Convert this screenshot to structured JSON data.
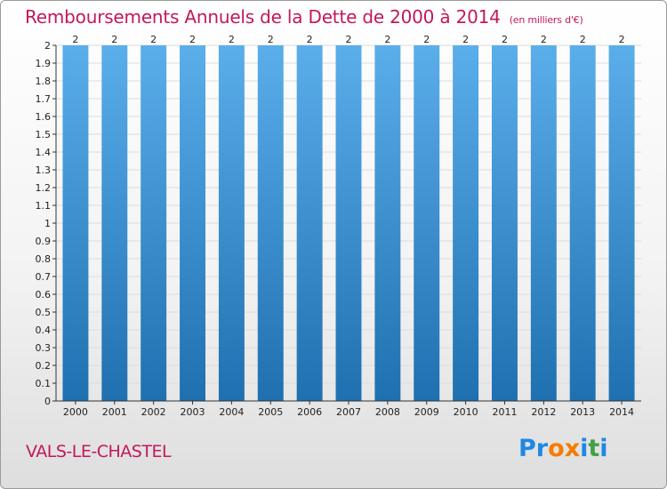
{
  "title": "Remboursements Annuels de la Dette de 2000 à 2014",
  "subtitle": "(en milliers d'€)",
  "commune": "VALS-LE-CHASTEL",
  "logo": {
    "text": "Proxiti",
    "letters": [
      "P",
      "r",
      "o",
      "x",
      "i",
      "t",
      "i"
    ],
    "colors": [
      "#1e88e5",
      "#1e88e5",
      "#f57c00",
      "#f57c00",
      "#1e88e5",
      "#43a047",
      "#1e88e5"
    ]
  },
  "colors": {
    "accent": "#c2185b",
    "bar_top": "#5aaeea",
    "bar_bottom": "#1f70b0"
  },
  "chart_data": {
    "type": "bar",
    "title": "Remboursements Annuels de la Dette de 2000 à 2014",
    "xlabel": "",
    "ylabel": "",
    "categories": [
      "2000",
      "2001",
      "2002",
      "2003",
      "2004",
      "2005",
      "2006",
      "2007",
      "2008",
      "2009",
      "2010",
      "2011",
      "2012",
      "2013",
      "2014"
    ],
    "values": [
      2,
      2,
      2,
      2,
      2,
      2,
      2,
      2,
      2,
      2,
      2,
      2,
      2,
      2,
      2
    ],
    "data_labels": [
      "2",
      "2",
      "2",
      "2",
      "2",
      "2",
      "2",
      "2",
      "2",
      "2",
      "2",
      "2",
      "2",
      "2",
      "2"
    ],
    "y_tick_labels": [
      "0",
      "0.1",
      "0.2",
      "0.3",
      "0.4",
      "0.5",
      "0.6",
      "0.7",
      "0.8",
      "0.9",
      "1",
      "1.1",
      "1.2",
      "1.3",
      "1.4",
      "1.5",
      "1.6",
      "1.7",
      "1.8",
      "1.9",
      "2"
    ],
    "ylim": [
      0,
      2
    ],
    "grid": true,
    "legend": "none"
  }
}
